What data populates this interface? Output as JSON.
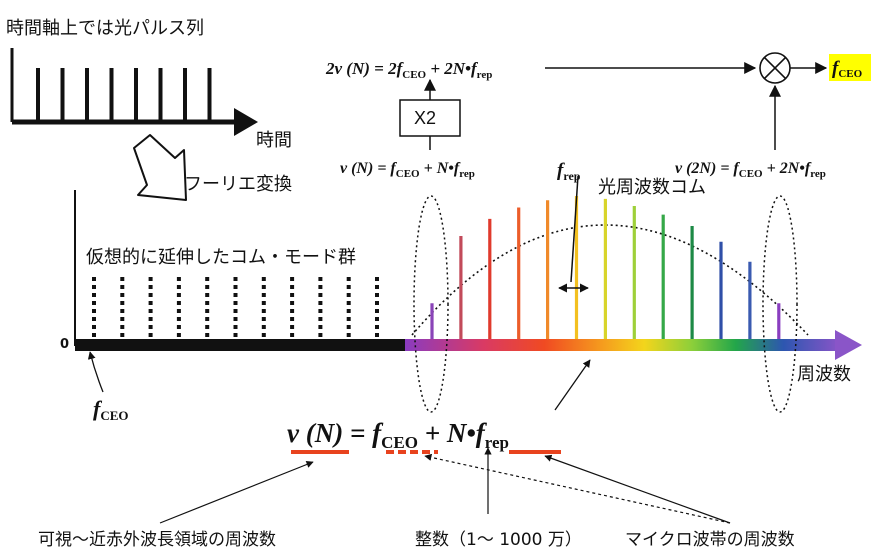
{
  "labels": {
    "time_domain_title": "時間軸上では光パルス列",
    "time_axis": "時間",
    "fourier": "フーリエ変換",
    "virtual_modes": "仮想的に延伸したコム・モード群",
    "zero": "0",
    "comb_name": "光周波数コム",
    "freq_axis": "周波数",
    "x2_box": "X2",
    "note_optical": "可視〜近赤外波長領域の周波数",
    "note_integer": "整数（1〜 1000 万）",
    "note_microwave": "マイクロ波帯の周波数"
  },
  "equations": {
    "doubled": {
      "lhs": "2ν (N) = 2f",
      "sub": "CEO",
      "rhs": " + 2N•f",
      "sub2": "rep"
    },
    "nu_n": {
      "lhs": "ν (N) = f",
      "sub": "CEO",
      "rhs": " + N•f",
      "sub2": "rep"
    },
    "nu_2n": {
      "lhs": "ν (2N) = f",
      "sub": "CEO",
      "rhs": " + 2N•f",
      "sub2": "rep"
    },
    "main": {
      "lhs": "ν (N) = f",
      "sub": "CEO",
      "rhs": " + N•f",
      "sub2": "rep"
    }
  },
  "symbols": {
    "fceo_base": "f",
    "fceo_sub": "CEO",
    "frep_base": "f",
    "frep_sub": "rep",
    "out_base": "f",
    "out_sub": "CEO"
  },
  "colors": {
    "highlight": "#ffff00",
    "underline": "#e8431e",
    "arrow_purple": "#8a55c8"
  },
  "comb": {
    "line_colors": [
      "#8a44b8",
      "#c24a5a",
      "#e03a2c",
      "#ec5d2a",
      "#f08a2a",
      "#f3c020",
      "#d8d42a",
      "#9ed039",
      "#35a848",
      "#1d8a46",
      "#2f4fa8",
      "#3a5ab0",
      "#8a3ec0"
    ],
    "relative_heights": [
      0.25,
      0.72,
      0.84,
      0.92,
      0.97,
      1.0,
      0.98,
      0.93,
      0.87,
      0.79,
      0.68,
      0.54,
      0.25
    ],
    "pulse_count": 8,
    "virtual_mode_count": 11
  }
}
